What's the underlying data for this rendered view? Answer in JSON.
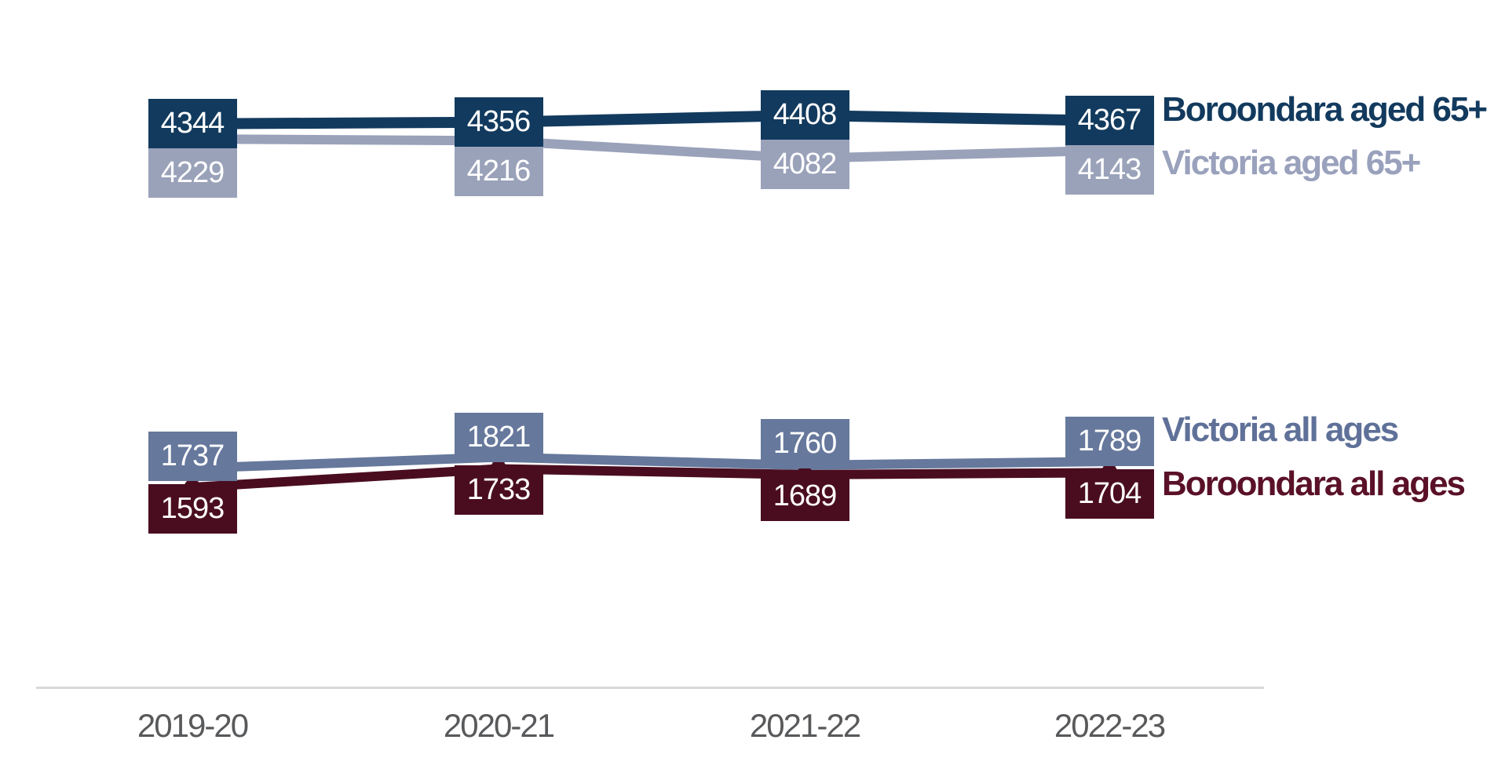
{
  "chart_data": {
    "type": "line",
    "title": "",
    "xlabel": "",
    "ylabel": "",
    "grid": false,
    "y_axis_visible": false,
    "value_labels_shown": true,
    "legend_position": "right",
    "background_color": "#FFFFFF",
    "axis_line_color": "#D9D9D9",
    "axis_label_color": "#58595B",
    "categories": [
      "2019-20",
      "2020-21",
      "2021-22",
      "2022-23"
    ],
    "series": [
      {
        "name": "Boroondara aged 65+",
        "values": [
          4344,
          4356,
          4408,
          4367
        ],
        "color": "#123A5E",
        "legend_color": "#123A5E",
        "label_text_color": "#FFFFFF"
      },
      {
        "name": "Victoria aged 65+",
        "values": [
          4229,
          4216,
          4082,
          4143
        ],
        "color": "#9AA2BA",
        "legend_color": "#99A1BC",
        "label_text_color": "#FFFFFF"
      },
      {
        "name": "Victoria all ages",
        "values": [
          1737,
          1821,
          1760,
          1789
        ],
        "color": "#66789C",
        "legend_color": "#5F7198",
        "label_text_color": "#FFFFFF"
      },
      {
        "name": "Boroondara all ages",
        "values": [
          1593,
          1733,
          1689,
          1704
        ],
        "color": "#4A0D20",
        "legend_color": "#5A1128",
        "label_text_color": "#FFFFFF"
      }
    ]
  }
}
